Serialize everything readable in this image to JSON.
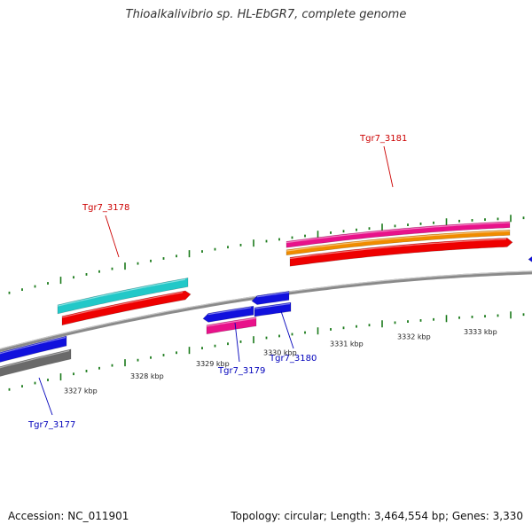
{
  "title": "Thioalkalivibrio sp. HL-EbGR7, complete genome",
  "footer": {
    "accession": "Accession: NC_011901",
    "summary": "Topology: circular; Length: 3,464,554 bp; Genes: 3,330"
  },
  "colors": {
    "backbone": "#8a8a8a",
    "tick": "#1a7a1a",
    "label_plus": "#cc0000",
    "label_minus": "#0000bb",
    "red": "#ee0000",
    "cyan": "#22c8c8",
    "magenta": "#e8128a",
    "orange": "#f08c00",
    "blue": "#1111dd",
    "grey": "#6a6a6a"
  },
  "scale_labels": [
    "3327 kbp",
    "3328 kbp",
    "3329 kbp",
    "3330 kbp",
    "3331 kbp",
    "3332 kbp",
    "3333 kbp"
  ],
  "gene_labels": [
    {
      "name": "Tgr7_3177",
      "strand": "minus"
    },
    {
      "name": "Tgr7_3178",
      "strand": "plus"
    },
    {
      "name": "Tgr7_3179",
      "strand": "minus"
    },
    {
      "name": "Tgr7_3180",
      "strand": "minus"
    },
    {
      "name": "Tgr7_3181",
      "strand": "plus"
    }
  ]
}
